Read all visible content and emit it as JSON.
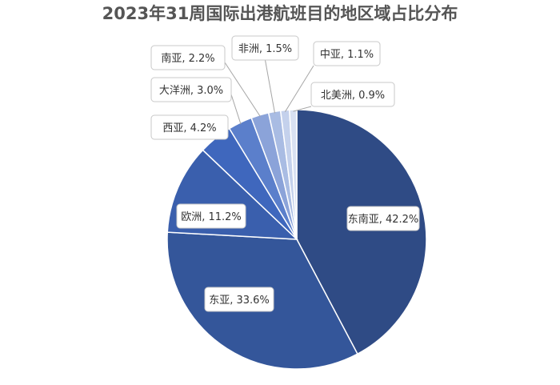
{
  "chart_data": {
    "type": "pie",
    "title": "2023年31周国际出港航班目的地区域占比分布",
    "slices": [
      {
        "name": "东南亚",
        "value": 42.2,
        "label": "东南亚, 42.2%",
        "color": "#2f4b85"
      },
      {
        "name": "东亚",
        "value": 33.6,
        "label": "东亚, 33.6%",
        "color": "#34569a"
      },
      {
        "name": "欧洲",
        "value": 11.2,
        "label": "欧洲, 11.2%",
        "color": "#3a5fad"
      },
      {
        "name": "西亚",
        "value": 4.2,
        "label": "西亚, 4.2%",
        "color": "#3f67bd"
      },
      {
        "name": "大洋洲",
        "value": 3.0,
        "label": "大洋洲, 3.0%",
        "color": "#5b7fcb"
      },
      {
        "name": "南亚",
        "value": 2.2,
        "label": "南亚, 2.2%",
        "color": "#8ba3d9"
      },
      {
        "name": "非洲",
        "value": 1.5,
        "label": "非洲, 1.5%",
        "color": "#a9bce3"
      },
      {
        "name": "中亚",
        "value": 1.1,
        "label": "中亚, 1.1%",
        "color": "#c4d1ec"
      },
      {
        "name": "北美洲",
        "value": 0.9,
        "label": "北美洲, 0.9%",
        "color": "#d9e1f2"
      }
    ],
    "legend": "none"
  }
}
